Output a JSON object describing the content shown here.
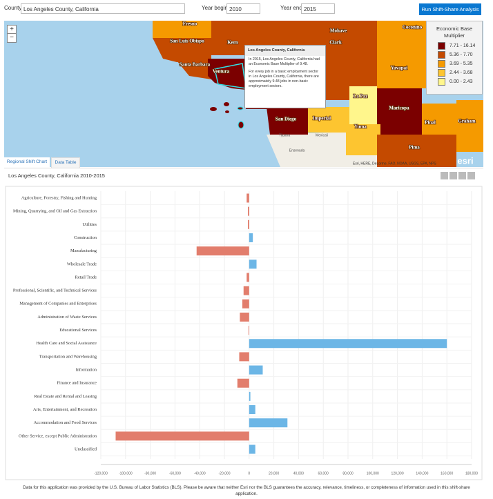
{
  "form": {
    "county_label": "County",
    "county_value": "Los Angeles County, California",
    "year_begin_label": "Year begin",
    "year_begin": "2010",
    "year_end_label": "Year end",
    "year_end": "2015",
    "button": "Run Shift-Share Analysis"
  },
  "map": {
    "zoom_in": "+",
    "zoom_out": "−",
    "labels": [
      "Fresno",
      "Kern",
      "San Luis Obispo",
      "Santa Barbara",
      "Ventura",
      "Mohave",
      "Clark",
      "Coconino",
      "Yavapai",
      "La Paz",
      "Maricopa",
      "Pinal",
      "Graham",
      "Imperial",
      "San Diego",
      "Yuma",
      "Pima",
      "Tijuana",
      "Mexicali",
      "Ensenada"
    ],
    "legend": {
      "title": "Economic Base Multiplier",
      "items": [
        {
          "label": "7.71 - 16.14",
          "color": "#7b0000"
        },
        {
          "label": "5.36 - 7.70",
          "color": "#c44a00"
        },
        {
          "label": "3.69 - 5.35",
          "color": "#f59a00"
        },
        {
          "label": "2.44 - 3.68",
          "color": "#fdc530"
        },
        {
          "label": "0.00 - 2.43",
          "color": "#fff68c"
        }
      ]
    },
    "popup": {
      "title": "Los Angeles County, California",
      "paragraphs": [
        "In 2015, Los Angeles County, California had an Economic Base Multiplier of 9.48.",
        "For every job in a basic employment sector in Los Angeles County, California, there are approximately 9.48 jobs in non-basic employment sectors."
      ]
    },
    "attribution": "Esri, HERE, DeLorme, FAO, NOAA, USGS, EPA, NPS",
    "logo": "esri"
  },
  "tabs": [
    "Regional Shift Chart",
    "Data Table"
  ],
  "chart_data": {
    "type": "bar",
    "orientation": "horizontal",
    "title": "Los Angeles County, California 2010-2015",
    "categories": [
      "Agriculture, Forestry, Fishing and Hunting",
      "Mining, Quarrying, and Oil and Gas Extraction",
      "Utilities",
      "Construction",
      "Manufacturing",
      "Wholesale Trade",
      "Retail Trade",
      "Professional, Scientific, and Technical Services",
      "Management of Companies and Enterprises",
      "Administration of Waste Services",
      "Educational Services",
      "Health Care and Social Assistance",
      "Transportation and Warehousing",
      "Information",
      "Finance and Insurance",
      "Real Estate and Rental and Leasing",
      "Arts, Entertainment, and Recreation",
      "Accommodation and Food Services",
      "Other Service, except Public Administration",
      "Unclassified"
    ],
    "values": [
      -2000,
      -1000,
      -1000,
      3000,
      -42500,
      6000,
      -2000,
      -4500,
      -5500,
      -7500,
      -500,
      160000,
      -8000,
      11000,
      -9500,
      1000,
      5000,
      31000,
      -108000,
      5000
    ],
    "positive_color": "#6cb6e6",
    "negative_color": "#e27d6c",
    "xlim": [
      -120000,
      180000
    ],
    "xticks": [
      {
        "value": -120000,
        "label": "-120,000"
      },
      {
        "value": -100000,
        "label": "-100,000"
      },
      {
        "value": -80000,
        "label": "-80,000"
      },
      {
        "value": -60000,
        "label": "-60,000"
      },
      {
        "value": -40000,
        "label": "-40,000"
      },
      {
        "value": -20000,
        "label": "-20,000"
      },
      0,
      {
        "value": 20000,
        "label": "20,000"
      },
      {
        "value": 40000,
        "label": "40,000"
      },
      {
        "value": 60000,
        "label": "60,000"
      },
      {
        "value": 80000,
        "label": "80,000"
      },
      {
        "value": 100000,
        "label": "100,000"
      },
      {
        "value": 120000,
        "label": "120,000"
      },
      {
        "value": 140000,
        "label": "140,000"
      },
      {
        "value": 160000,
        "label": "160,000"
      },
      {
        "value": 180000,
        "label": "180,000"
      }
    ],
    "grid": true
  },
  "footer": "Data for this application was provided by the U.S. Bureau of Labor Statistics (BLS).  Please be aware that neither Esri nor the BLS guarantees the accuracy, relevance, timeliness, or completeness of information used in this shift-share application."
}
